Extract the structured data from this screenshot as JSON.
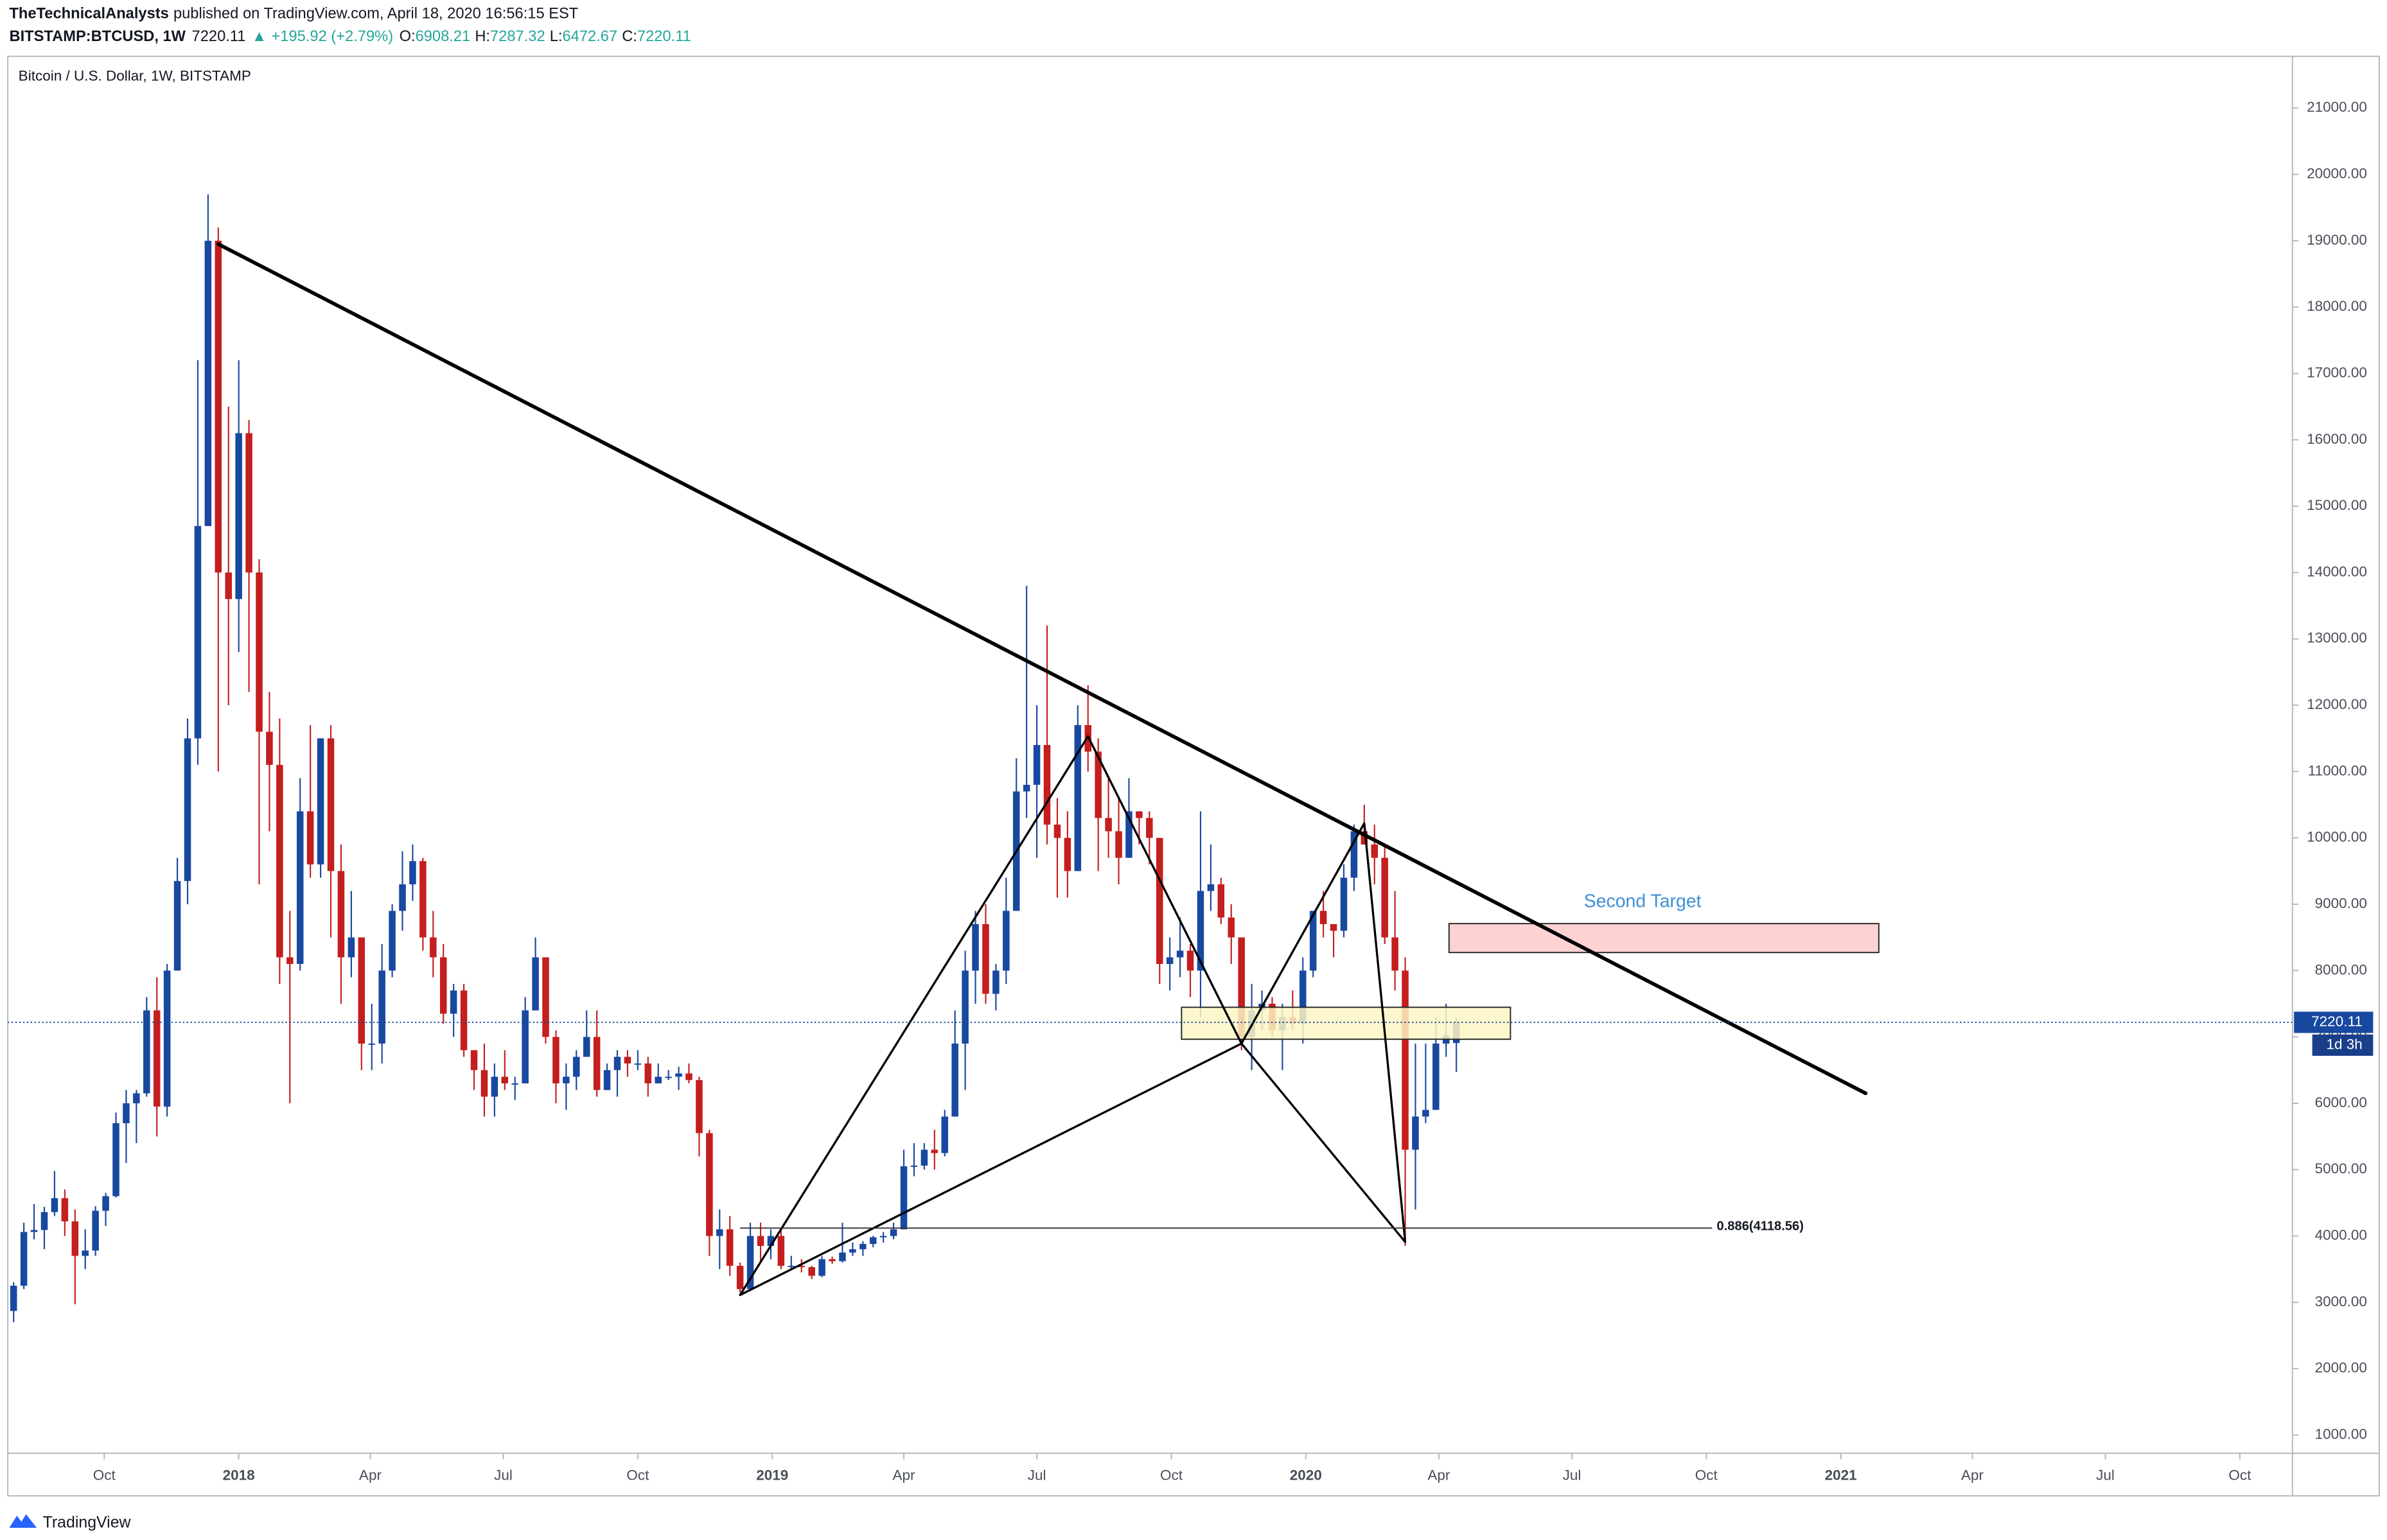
{
  "header": {
    "author": "TheTechnicalAnalysts",
    "published": "published on TradingView.com, April 18, 2020 16:56:15 EST",
    "symbol": "BITSTAMP:BTCUSD, 1W",
    "last": "7220.11",
    "arrow": "▲",
    "change": "+195.92 (+2.79%)",
    "ohlc": [
      {
        "label": "O:",
        "value": "6908.21"
      },
      {
        "label": "H:",
        "value": "7287.32"
      },
      {
        "label": "L:",
        "value": "6472.67"
      },
      {
        "label": "C:",
        "value": "7220.11"
      }
    ]
  },
  "footer": {
    "brand": "TradingView"
  },
  "chart_data": {
    "type": "candlestick",
    "title": "Bitcoin / U.S. Dollar, 1W, BITSTAMP",
    "up_color": "#1848a0",
    "down_color": "#c41e1e",
    "countdown": "1d 3h",
    "x": [
      "2017-07-31",
      "2017-08-07",
      "2017-08-14",
      "2017-08-21",
      "2017-08-28",
      "2017-09-04",
      "2017-09-11",
      "2017-09-18",
      "2017-09-25",
      "2017-10-02",
      "2017-10-09",
      "2017-10-16",
      "2017-10-23",
      "2017-10-30",
      "2017-11-06",
      "2017-11-13",
      "2017-11-20",
      "2017-11-27",
      "2017-12-04",
      "2017-12-11",
      "2017-12-18",
      "2017-12-25",
      "2018-01-01",
      "2018-01-08",
      "2018-01-15",
      "2018-01-22",
      "2018-01-29",
      "2018-02-05",
      "2018-02-12",
      "2018-02-19",
      "2018-02-26",
      "2018-03-05",
      "2018-03-12",
      "2018-03-19",
      "2018-03-26",
      "2018-04-02",
      "2018-04-09",
      "2018-04-16",
      "2018-04-23",
      "2018-04-30",
      "2018-05-07",
      "2018-05-14",
      "2018-05-21",
      "2018-05-28",
      "2018-06-04",
      "2018-06-11",
      "2018-06-18",
      "2018-06-25",
      "2018-07-02",
      "2018-07-09",
      "2018-07-16",
      "2018-07-23",
      "2018-07-30",
      "2018-08-06",
      "2018-08-13",
      "2018-08-20",
      "2018-08-27",
      "2018-09-03",
      "2018-09-10",
      "2018-09-17",
      "2018-09-24",
      "2018-10-01",
      "2018-10-08",
      "2018-10-15",
      "2018-10-22",
      "2018-10-29",
      "2018-11-05",
      "2018-11-12",
      "2018-11-19",
      "2018-11-26",
      "2018-12-03",
      "2018-12-10",
      "2018-12-17",
      "2018-12-24",
      "2018-12-31",
      "2019-01-07",
      "2019-01-14",
      "2019-01-21",
      "2019-01-28",
      "2019-02-04",
      "2019-02-11",
      "2019-02-18",
      "2019-02-25",
      "2019-03-04",
      "2019-03-11",
      "2019-03-18",
      "2019-03-25",
      "2019-04-01",
      "2019-04-08",
      "2019-04-15",
      "2019-04-22",
      "2019-04-29",
      "2019-05-06",
      "2019-05-13",
      "2019-05-20",
      "2019-05-27",
      "2019-06-03",
      "2019-06-10",
      "2019-06-17",
      "2019-06-24",
      "2019-07-01",
      "2019-07-08",
      "2019-07-15",
      "2019-07-22",
      "2019-07-29",
      "2019-08-05",
      "2019-08-12",
      "2019-08-19",
      "2019-08-26",
      "2019-09-02",
      "2019-09-09",
      "2019-09-16",
      "2019-09-23",
      "2019-09-30",
      "2019-10-07",
      "2019-10-14",
      "2019-10-21",
      "2019-10-28",
      "2019-11-04",
      "2019-11-11",
      "2019-11-18",
      "2019-11-25",
      "2019-12-02",
      "2019-12-09",
      "2019-12-16",
      "2019-12-23",
      "2019-12-30",
      "2020-01-06",
      "2020-01-13",
      "2020-01-20",
      "2020-01-27",
      "2020-02-03",
      "2020-02-10",
      "2020-02-17",
      "2020-02-24",
      "2020-03-02",
      "2020-03-09",
      "2020-03-16",
      "2020-03-23",
      "2020-03-30",
      "2020-04-06",
      "2020-04-13"
    ],
    "open": [
      2870,
      3250,
      4060,
      4090,
      4360,
      4570,
      4220,
      3700,
      3780,
      4380,
      4600,
      5700,
      6000,
      6150,
      7400,
      5950,
      8000,
      9350,
      11500,
      14700,
      19000,
      14000,
      13600,
      16100,
      14000,
      11600,
      11100,
      8200,
      8100,
      10400,
      9600,
      11500,
      9500,
      8200,
      8500,
      6900,
      6900,
      8000,
      8900,
      9300,
      9650,
      8500,
      8200,
      7350,
      7700,
      6800,
      6500,
      6100,
      6400,
      6300,
      6300,
      7400,
      8200,
      7000,
      6300,
      6400,
      6700,
      7000,
      6200,
      6500,
      6700,
      6600,
      6600,
      6300,
      6400,
      6400,
      6450,
      6350,
      5550,
      4000,
      4100,
      3550,
      3200,
      4000,
      3850,
      4000,
      3550,
      3550,
      3530,
      3400,
      3650,
      3620,
      3750,
      3800,
      3880,
      3980,
      4000,
      4100,
      5050,
      5060,
      5300,
      5250,
      5800,
      6900,
      8000,
      8700,
      7650,
      8000,
      8900,
      10700,
      10800,
      11400,
      10200,
      10000,
      9500,
      11700,
      11300,
      10300,
      10100,
      9700,
      10400,
      10300,
      10000,
      8100,
      8200,
      8300,
      8000,
      9200,
      9300,
      8800,
      8500,
      7000,
      7400,
      7500,
      7100,
      7300,
      7200,
      8000,
      8900,
      8700,
      8600,
      9400,
      10100,
      9900,
      9700,
      8500,
      8000,
      5300,
      5800,
      5900,
      6900,
      6908.21
    ],
    "high": [
      3300,
      4200,
      4480,
      4440,
      4980,
      4700,
      4400,
      4100,
      4450,
      4650,
      5860,
      6200,
      6200,
      7600,
      7900,
      8100,
      9700,
      11800,
      17200,
      19700,
      19200,
      16500,
      17200,
      16300,
      14200,
      12200,
      11800,
      8900,
      10900,
      11700,
      11500,
      11700,
      9900,
      9200,
      8500,
      7500,
      8400,
      9000,
      9800,
      9900,
      9700,
      8900,
      8400,
      7800,
      7800,
      6800,
      6900,
      6600,
      6800,
      6400,
      7600,
      8500,
      8200,
      7100,
      6600,
      6800,
      7400,
      7400,
      6600,
      6800,
      6800,
      6800,
      6700,
      6600,
      6500,
      6550,
      6600,
      6400,
      5600,
      4400,
      4300,
      3600,
      4200,
      4200,
      4100,
      4100,
      3700,
      3650,
      3550,
      3700,
      3690,
      4200,
      3900,
      3920,
      4000,
      4060,
      4200,
      5300,
      5400,
      5400,
      5600,
      5900,
      7400,
      8300,
      8900,
      9000,
      8100,
      9400,
      11200,
      13800,
      12000,
      13200,
      10600,
      10400,
      12000,
      12300,
      11500,
      10900,
      10600,
      10900,
      10400,
      10400,
      10000,
      8500,
      8800,
      8400,
      10400,
      9900,
      9400,
      9000,
      8500,
      7800,
      7700,
      7600,
      7500,
      7700,
      8200,
      8900,
      9200,
      8700,
      9600,
      10200,
      10500,
      10200,
      9900,
      9200,
      8200,
      6900,
      6900,
      7300,
      7500,
      7287.32
    ],
    "low": [
      2700,
      3200,
      3950,
      3800,
      4300,
      4000,
      2970,
      3500,
      3700,
      4150,
      4580,
      5100,
      5400,
      6100,
      5500,
      5800,
      8000,
      9000,
      11100,
      14700,
      11000,
      12000,
      12800,
      12200,
      9300,
      10100,
      7800,
      6000,
      8000,
      9400,
      9400,
      8500,
      7500,
      7900,
      6500,
      6500,
      6600,
      7900,
      8600,
      9050,
      8300,
      7900,
      7200,
      7000,
      6700,
      6200,
      5800,
      5800,
      6200,
      6050,
      6300,
      7400,
      6900,
      6000,
      5900,
      6200,
      6700,
      6100,
      6200,
      6100,
      6400,
      6500,
      6100,
      6300,
      6350,
      6200,
      6300,
      5200,
      3700,
      3500,
      3400,
      3150,
      3200,
      3600,
      3650,
      3500,
      3500,
      3450,
      3350,
      3380,
      3580,
      3600,
      3700,
      3700,
      3830,
      3900,
      3950,
      4100,
      4900,
      5000,
      5000,
      5200,
      5800,
      6200,
      7500,
      7500,
      7400,
      7800,
      8900,
      10300,
      9700,
      9900,
      9100,
      9100,
      9500,
      11000,
      9500,
      9700,
      9300,
      9700,
      9900,
      9600,
      7800,
      7700,
      7900,
      7600,
      7300,
      8900,
      8700,
      8100,
      6800,
      6500,
      7100,
      7000,
      6500,
      7100,
      6900,
      7900,
      8500,
      8200,
      8500,
      9200,
      9900,
      9300,
      8400,
      7700,
      3850,
      4400,
      5700,
      5900,
      6700,
      6472.67
    ],
    "close": [
      3250,
      4060,
      4090,
      4360,
      4570,
      4220,
      3700,
      3780,
      4380,
      4600,
      5700,
      6000,
      6150,
      7400,
      5950,
      8000,
      9350,
      11500,
      14700,
      19000,
      14000,
      13600,
      16100,
      14000,
      11600,
      11100,
      8200,
      8100,
      10400,
      9600,
      11500,
      9500,
      8200,
      8500,
      6900,
      6900,
      8000,
      8900,
      9300,
      9650,
      8500,
      8200,
      7350,
      7700,
      6800,
      6500,
      6100,
      6400,
      6300,
      6300,
      7400,
      8200,
      7000,
      6300,
      6400,
      6700,
      7000,
      6200,
      6500,
      6700,
      6600,
      6600,
      6300,
      6400,
      6400,
      6450,
      6350,
      5550,
      4000,
      4100,
      3550,
      3200,
      4000,
      3850,
      4000,
      3550,
      3550,
      3530,
      3400,
      3650,
      3620,
      3750,
      3800,
      3880,
      3980,
      4000,
      4100,
      5050,
      5060,
      5300,
      5250,
      5800,
      6900,
      8000,
      8700,
      7650,
      8000,
      8900,
      10700,
      10800,
      11400,
      10200,
      10000,
      9500,
      11700,
      11300,
      10300,
      10100,
      9700,
      10400,
      10300,
      10000,
      8100,
      8200,
      8300,
      8000,
      9200,
      9300,
      8800,
      8500,
      7000,
      7400,
      7500,
      7100,
      7300,
      7200,
      8000,
      8900,
      8700,
      8600,
      9400,
      10100,
      9900,
      9700,
      8500,
      8000,
      5300,
      5800,
      5900,
      6900,
      7024.19,
      7220.11
    ],
    "xlim": [
      "2017-07-27",
      "2021-11-06"
    ],
    "xticks": [
      {
        "value": "2017-10-01",
        "label": "Oct"
      },
      {
        "value": "2018-01-01",
        "label": "2018"
      },
      {
        "value": "2018-04-01",
        "label": "Apr"
      },
      {
        "value": "2018-07-01",
        "label": "Jul"
      },
      {
        "value": "2018-10-01",
        "label": "Oct"
      },
      {
        "value": "2019-01-01",
        "label": "2019"
      },
      {
        "value": "2019-04-01",
        "label": "Apr"
      },
      {
        "value": "2019-07-01",
        "label": "Jul"
      },
      {
        "value": "2019-10-01",
        "label": "Oct"
      },
      {
        "value": "2020-01-01",
        "label": "2020"
      },
      {
        "value": "2020-04-01",
        "label": "Apr"
      },
      {
        "value": "2020-07-01",
        "label": "Jul"
      },
      {
        "value": "2020-10-01",
        "label": "Oct"
      },
      {
        "value": "2021-01-01",
        "label": "2021"
      },
      {
        "value": "2021-04-01",
        "label": "Apr"
      },
      {
        "value": "2021-07-01",
        "label": "Jul"
      },
      {
        "value": "2021-10-01",
        "label": "Oct"
      }
    ],
    "ylim": [
      725,
      21780
    ],
    "yticks": [
      {
        "value": 1000,
        "label": "1000.00"
      },
      {
        "value": 2000,
        "label": "2000.00"
      },
      {
        "value": 3000,
        "label": "3000.00"
      },
      {
        "value": 4000,
        "label": "4000.00"
      },
      {
        "value": 5000,
        "label": "5000.00"
      },
      {
        "value": 6000,
        "label": "6000.00"
      },
      {
        "value": 7000,
        "label": "7000.00"
      },
      {
        "value": 8000,
        "label": "8000.00"
      },
      {
        "value": 9000,
        "label": "9000.00"
      },
      {
        "value": 10000,
        "label": "10000.00"
      },
      {
        "value": 11000,
        "label": "11000.00"
      },
      {
        "value": 12000,
        "label": "12000.00"
      },
      {
        "value": 13000,
        "label": "13000.00"
      },
      {
        "value": 14000,
        "label": "14000.00"
      },
      {
        "value": 15000,
        "label": "15000.00"
      },
      {
        "value": 16000,
        "label": "16000.00"
      },
      {
        "value": 17000,
        "label": "17000.00"
      },
      {
        "value": 18000,
        "label": "18000.00"
      },
      {
        "value": 19000,
        "label": "19000.00"
      },
      {
        "value": 20000,
        "label": "20000.00"
      },
      {
        "value": 21000,
        "label": "21000.00"
      }
    ],
    "grid": false,
    "drawings": {
      "trend_line": [
        {
          "x": "2017-12-18",
          "y": 18950
        },
        {
          "x": "2021-01-18",
          "y": 6150
        }
      ],
      "pattern": [
        {
          "x": "2018-12-10",
          "y": 3110
        },
        {
          "x": "2019-08-05",
          "y": 11530
        },
        {
          "x": "2019-11-18",
          "y": 6900
        },
        {
          "x": "2020-02-10",
          "y": 10220
        },
        {
          "x": "2020-03-09",
          "y": 3910
        }
      ],
      "fib_level": {
        "label": "0.886(4118.56)",
        "value": 4118.56,
        "x": [
          "2018-12-10",
          "2020-10-05"
        ]
      },
      "zones": [
        {
          "x": [
            "2019-10-08",
            "2020-05-20"
          ],
          "y": [
            6965,
            7447
          ],
          "color": "#fdf6c4"
        },
        {
          "x": [
            "2020-04-08",
            "2021-01-27"
          ],
          "y": [
            8272,
            8708
          ],
          "color": "#fccaca"
        }
      ],
      "target_label": "Second Target"
    }
  }
}
